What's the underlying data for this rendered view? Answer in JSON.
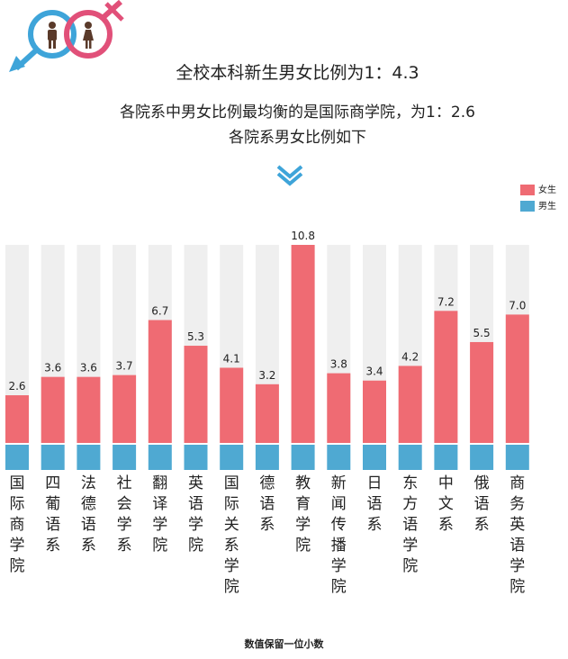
{
  "header": {
    "overall_ratio": "全校本科新生男女比例为1：4.3",
    "balanced_note": "各院系中男女比例最均衡的是国际商学院，为1：2.6",
    "subtitle": "各院系男女比例如下"
  },
  "colors": {
    "female": "#ef6b73",
    "male": "#4fa9d2",
    "track": "#efefef",
    "logo_pink": "#e15079",
    "logo_blue": "#3ea4d9"
  },
  "legend": {
    "female_label": "女生",
    "male_label": "男生"
  },
  "chart_data": {
    "type": "bar",
    "categories": [
      "国际商学院",
      "四葡语系",
      "法德语系",
      "社会学系",
      "翻译学院",
      "英语学院",
      "国际关系学院",
      "德语系",
      "教育学院",
      "新闻传播学院",
      "日语系",
      "东方语学院",
      "中文系",
      "俄语系",
      "商务英语学院"
    ],
    "series": [
      {
        "name": "女生",
        "values": [
          2.6,
          3.6,
          3.6,
          3.7,
          6.7,
          5.3,
          4.1,
          3.2,
          10.8,
          3.8,
          3.4,
          4.2,
          7.2,
          5.5,
          7.0
        ]
      },
      {
        "name": "男生",
        "values": [
          1,
          1,
          1,
          1,
          1,
          1,
          1,
          1,
          1,
          1,
          1,
          1,
          1,
          1,
          1
        ]
      }
    ],
    "value_labels": [
      "2.6",
      "3.6",
      "3.6",
      "3.7",
      "6.7",
      "5.3",
      "4.1",
      "3.2",
      "10.8",
      "3.8",
      "3.4",
      "4.2",
      "7.2",
      "5.5",
      "7.0"
    ],
    "ylim": [
      0,
      10.8
    ],
    "legend_position": "top-right",
    "grid": false
  },
  "footnote": "数值保留一位小数"
}
